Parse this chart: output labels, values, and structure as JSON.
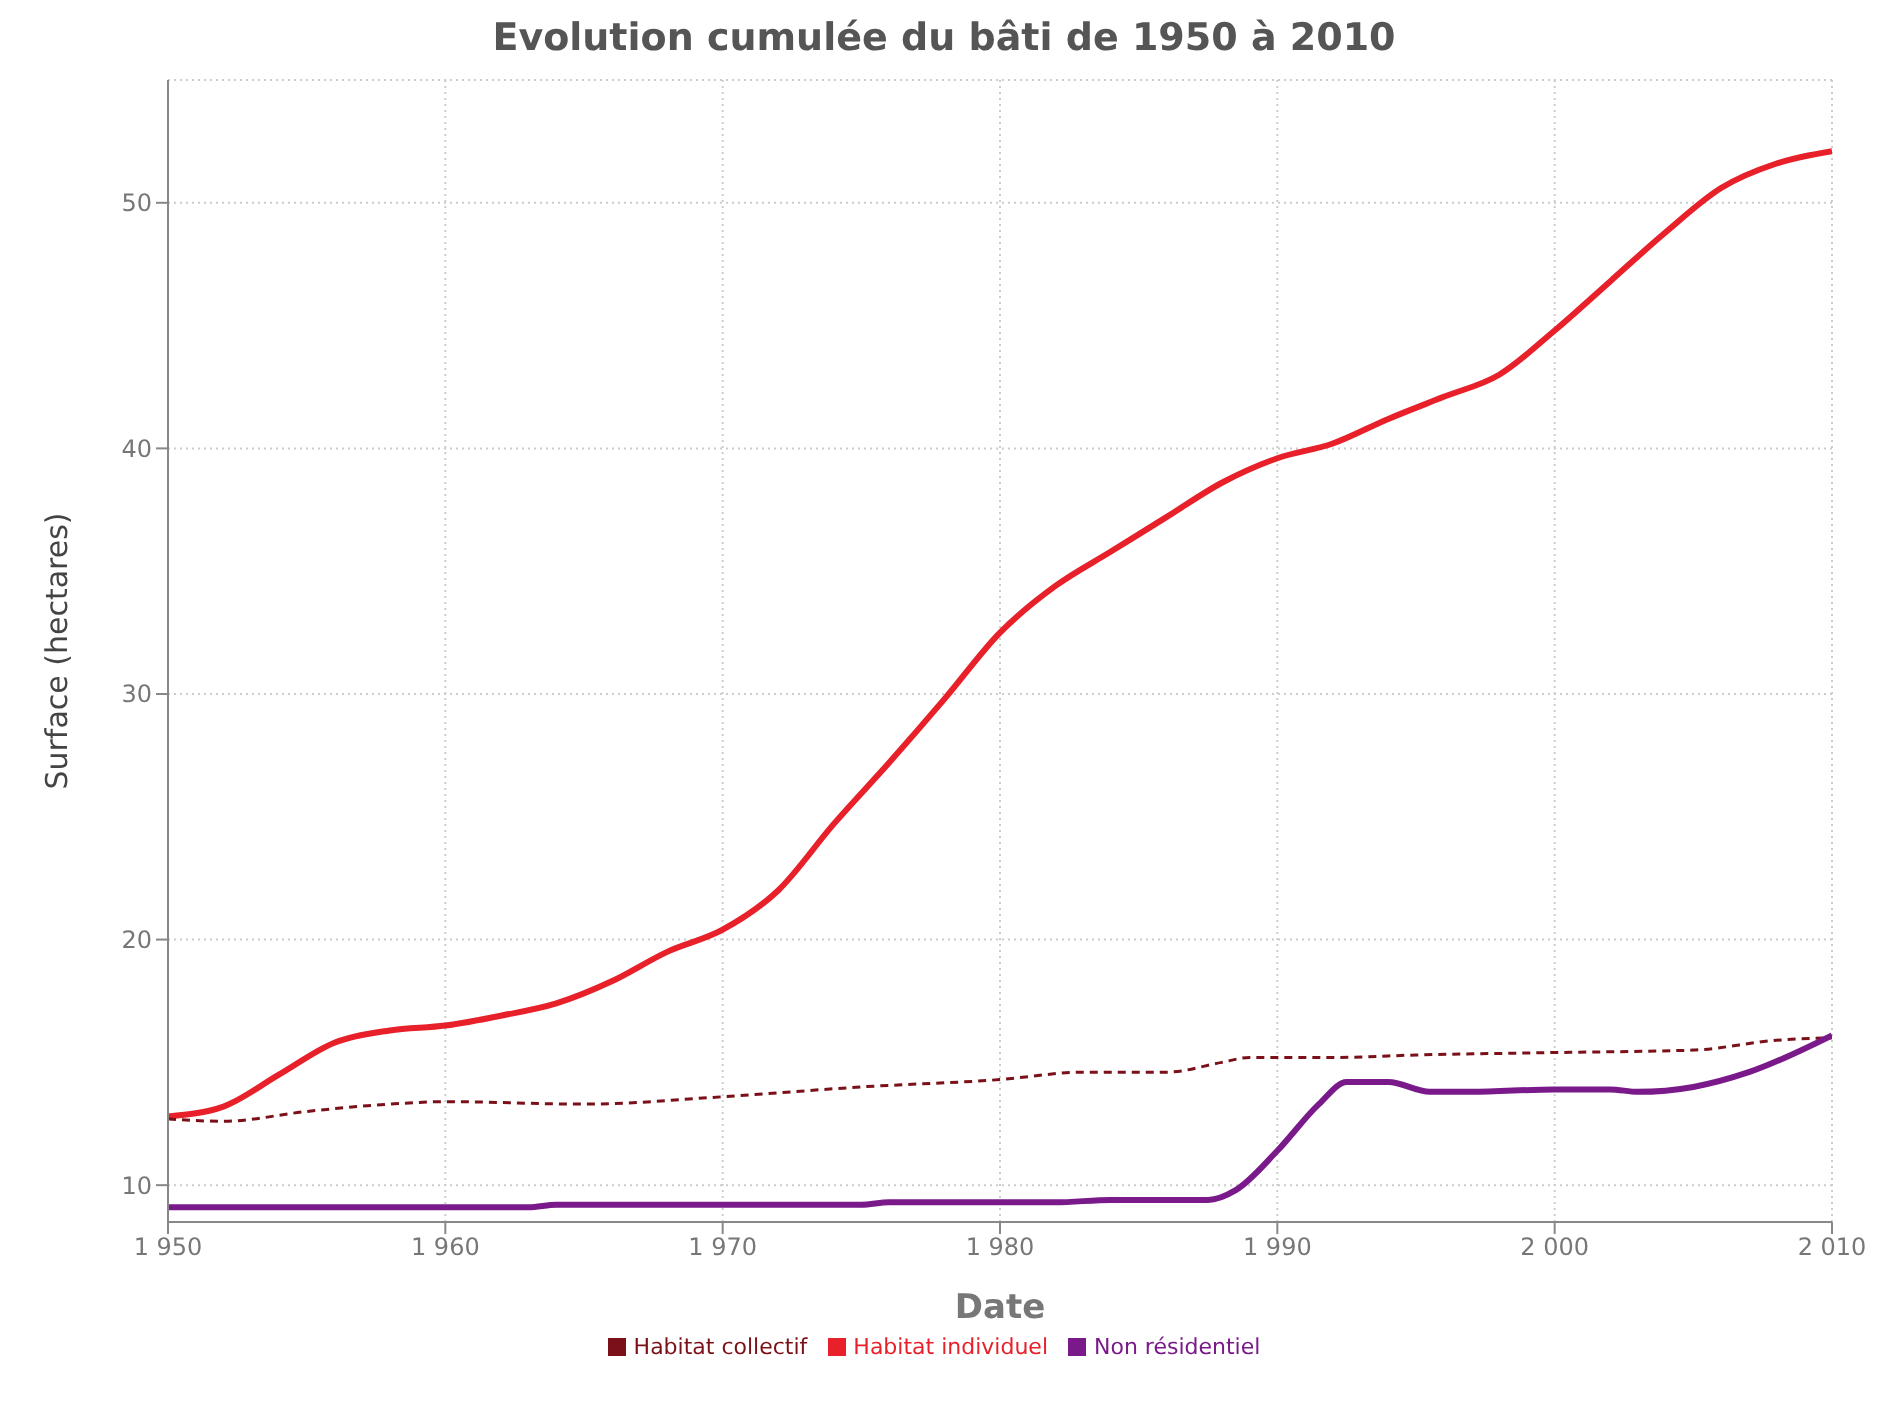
{
  "chart_data": {
    "type": "line",
    "title": "Evolution cumulée du bâti de 1950 à 2010",
    "xlabel": "Date",
    "ylabel": "Surface (hectares)",
    "xlim": [
      1950,
      2010
    ],
    "xticks": [
      {
        "value": 1950,
        "label": "1 950"
      },
      {
        "value": 1960,
        "label": "1 960"
      },
      {
        "value": 1970,
        "label": "1 970"
      },
      {
        "value": 1980,
        "label": "1 980"
      },
      {
        "value": 1990,
        "label": "1 990"
      },
      {
        "value": 2000,
        "label": "2 000"
      },
      {
        "value": 2010,
        "label": "2 010"
      }
    ],
    "ylim": [
      8.5,
      55
    ],
    "yticks": [
      10,
      20,
      30,
      40,
      50
    ],
    "grid": true,
    "legend": "bottom",
    "marker": "none",
    "series": [
      {
        "name": "Habitat individuel",
        "color": "#e8202a",
        "line_style": "solid",
        "x": [
          1950,
          1952,
          1954,
          1956,
          1958,
          1960,
          1962,
          1964,
          1966,
          1968,
          1970,
          1972,
          1974,
          1976,
          1978,
          1980,
          1982,
          1984,
          1986,
          1988,
          1990,
          1992,
          1994,
          1996,
          1998,
          2000,
          2002,
          2004,
          2006,
          2008,
          2010
        ],
        "values": [
          12.8,
          13.2,
          14.5,
          15.8,
          16.3,
          16.5,
          16.9,
          17.4,
          18.3,
          19.5,
          20.4,
          22,
          24.7,
          27.2,
          29.8,
          32.5,
          34.4,
          35.8,
          37.2,
          38.6,
          39.6,
          40.2,
          41.2,
          42.1,
          43,
          44.8,
          46.8,
          48.8,
          50.6,
          51.6,
          52.1
        ]
      },
      {
        "name": "Habitat collectif",
        "color": "#7b1018",
        "line_style": "dashed",
        "x": [
          1950,
          1952,
          1955,
          1958,
          1960,
          1965,
          1970,
          1975,
          1980,
          1983,
          1986,
          1988,
          1989,
          1992,
          1995,
          2000,
          2005,
          2008,
          2010
        ],
        "values": [
          12.7,
          12.6,
          13,
          13.3,
          13.4,
          13.3,
          13.6,
          14,
          14.3,
          14.6,
          14.6,
          15,
          15.2,
          15.2,
          15.3,
          15.4,
          15.5,
          15.9,
          16
        ]
      },
      {
        "name": "Non résidentiel",
        "color": "#7a1a8a",
        "line_style": "solid",
        "x": [
          1950,
          1963,
          1964,
          1975,
          1976,
          1982,
          1984,
          1986,
          1987.5,
          1988.5,
          1990,
          1991.5,
          1992.5,
          1994,
          1995.5,
          1997,
          2000,
          2002,
          2003,
          2005,
          2007,
          2010
        ],
        "values": [
          9.1,
          9.1,
          9.2,
          9.2,
          9.3,
          9.3,
          9.4,
          9.4,
          9.4,
          9.8,
          11.4,
          13.3,
          14.2,
          14.2,
          13.8,
          13.8,
          13.9,
          13.9,
          13.8,
          14,
          14.6,
          16.1
        ]
      }
    ]
  }
}
